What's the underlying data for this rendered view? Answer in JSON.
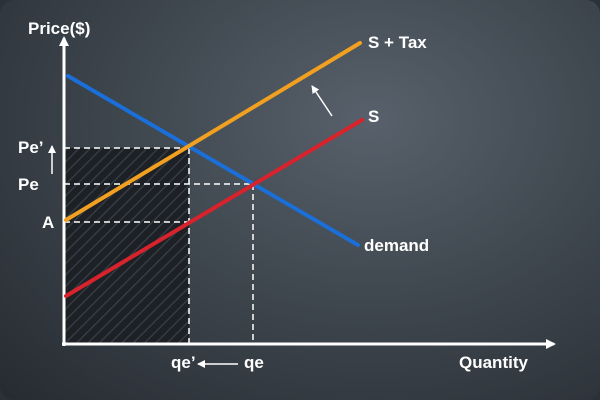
{
  "axes": {
    "y_label": "Price($)",
    "x_label": "Quantity"
  },
  "curves": {
    "demand": {
      "label": "demand",
      "color": "#1a6fd8"
    },
    "supply": {
      "label": "S",
      "color": "#d8222c"
    },
    "supply_tax": {
      "label": "S + Tax",
      "color": "#f2a020"
    }
  },
  "price_labels": {
    "pe_prime": "Pe’",
    "pe": "Pe",
    "a": "A"
  },
  "quantity_labels": {
    "qe_prime": "qe’",
    "qe": "qe"
  },
  "colors": {
    "axis": "#ffffff",
    "guide": "#ffffff",
    "shaded_region": "#1b1f24"
  }
}
